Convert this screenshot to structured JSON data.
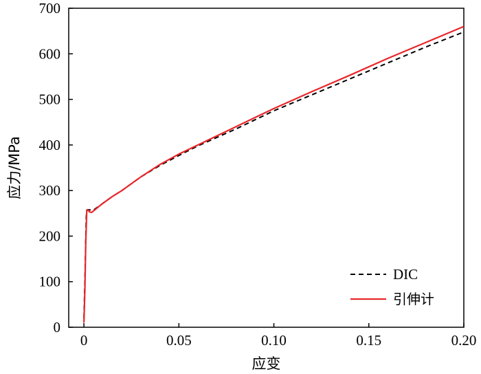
{
  "chart_data": {
    "type": "line",
    "title": "",
    "xlabel": "应变",
    "ylabel": "应力/MPa",
    "xlim": [
      -0.008,
      0.2
    ],
    "ylim": [
      0,
      700
    ],
    "x_ticks": [
      0,
      0.05,
      0.1,
      0.15,
      0.2
    ],
    "x_tick_labels": [
      "0",
      "0.05",
      "0.10",
      "0.15",
      "0.20"
    ],
    "y_ticks": [
      0,
      100,
      200,
      300,
      400,
      500,
      600,
      700
    ],
    "y_tick_labels": [
      "0",
      "100",
      "200",
      "300",
      "400",
      "500",
      "600",
      "700"
    ],
    "grid": false,
    "legend_position": "bottom-right",
    "series": [
      {
        "name": "DIC",
        "color": "#000000",
        "dash": "dashed",
        "x": [
          0,
          0.0005,
          0.001,
          0.0012,
          0.0015,
          0.002,
          0.005,
          0.01,
          0.015,
          0.02,
          0.03,
          0.04,
          0.05,
          0.06,
          0.08,
          0.1,
          0.12,
          0.14,
          0.16,
          0.18,
          0.2
        ],
        "y": [
          20,
          100,
          200,
          240,
          257,
          258,
          257,
          272,
          287,
          300,
          330,
          355,
          377,
          398,
          435,
          475,
          510,
          545,
          580,
          615,
          648
        ]
      },
      {
        "name": "引伸计",
        "color": "#e8262a",
        "dash": "solid",
        "x": [
          0,
          0.0005,
          0.001,
          0.0015,
          0.002,
          0.003,
          0.004,
          0.005,
          0.007,
          0.01,
          0.015,
          0.02,
          0.03,
          0.04,
          0.05,
          0.06,
          0.08,
          0.1,
          0.12,
          0.14,
          0.16,
          0.18,
          0.2
        ],
        "y": [
          10,
          80,
          190,
          255,
          258,
          253,
          252,
          255,
          262,
          272,
          287,
          300,
          330,
          357,
          380,
          400,
          440,
          480,
          517,
          553,
          590,
          625,
          660
        ]
      }
    ]
  }
}
